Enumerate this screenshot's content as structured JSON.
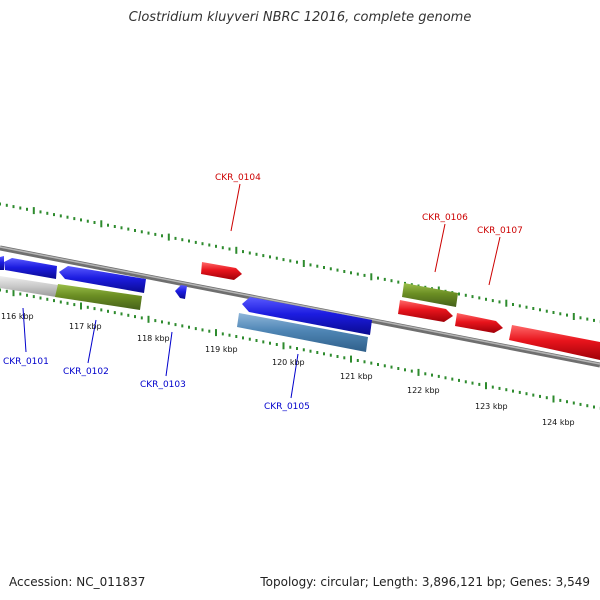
{
  "title": "Clostridium kluyveri NBRC 12016, complete genome",
  "footer": {
    "accession": "Accession: NC_011837",
    "summary": "Topology: circular; Length: 3,896,121 bp; Genes: 3,549"
  },
  "colors": {
    "backbone": "#8a8a8a",
    "tick": "#2e8b2e",
    "forward_gene": "#e8141c",
    "reverse_gene": "#1c1ce0",
    "rna_gene": "#6b8e23",
    "pseudo_gene": "#4f86b5",
    "unlabeled_gene": "#c8c8c8",
    "forward_label": "#cc0000",
    "reverse_label": "#0000cc"
  },
  "scale_labels": [
    "116 kbp",
    "117 kbp",
    "118 kbp",
    "119 kbp",
    "120 kbp",
    "121 kbp",
    "122 kbp",
    "123 kbp",
    "124 kbp"
  ],
  "gene_labels": {
    "forward": [
      "CKR_0104",
      "CKR_0106",
      "CKR_0107"
    ],
    "reverse": [
      "CKR_0101",
      "CKR_0102",
      "CKR_0103",
      "CKR_0105"
    ]
  }
}
